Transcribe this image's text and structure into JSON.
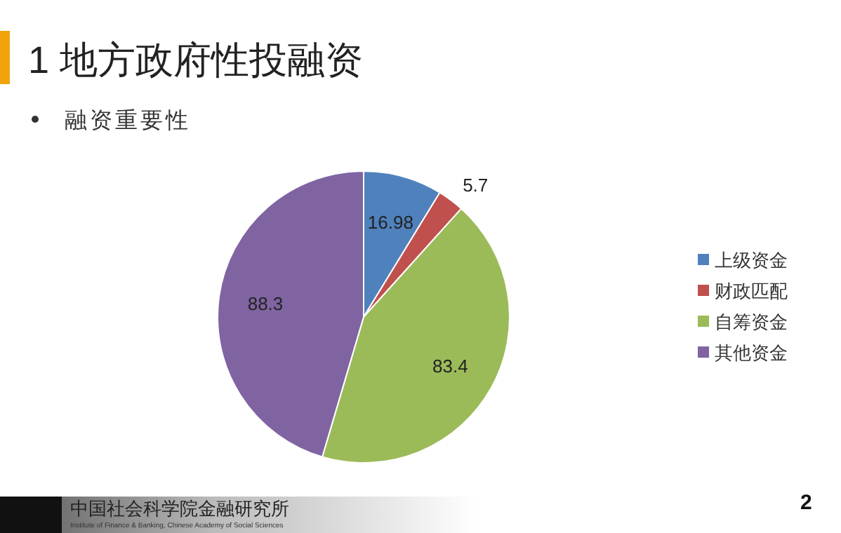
{
  "chart_data": {
    "type": "pie",
    "title": "1  地方政府性投融资",
    "subtitle": "融资重要性",
    "categories": [
      "上级资金",
      "财政匹配",
      "自筹资金",
      "其他资金"
    ],
    "values": [
      16.98,
      5.7,
      83.4,
      88.3
    ],
    "colors": [
      "#4f81bd",
      "#c0504d",
      "#9bbb59",
      "#8064a2"
    ],
    "data_labels": true,
    "legend": "right",
    "annotations": [
      "中国社会科学院金融研究所",
      "Institute of Finance & Banking, Chinese Academy of Social Sciences",
      "2"
    ]
  }
}
